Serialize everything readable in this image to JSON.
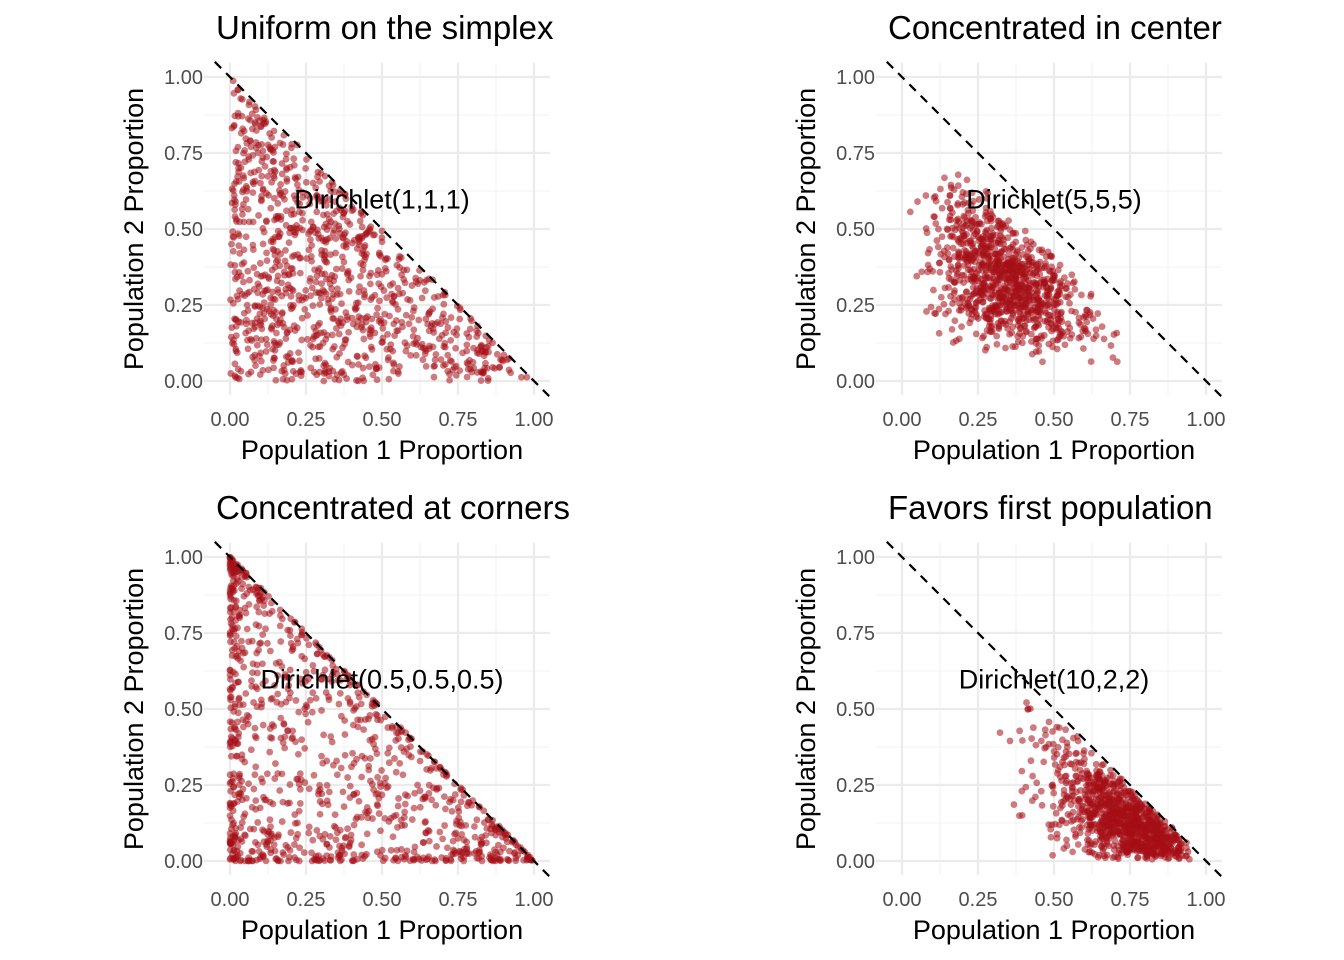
{
  "chart_data": [
    {
      "type": "scatter",
      "title": "Uniform on the simplex",
      "xlabel": "Population 1 Proportion",
      "ylabel": "Population 2 Proportion",
      "xlim": [
        0,
        1
      ],
      "ylim": [
        0,
        1
      ],
      "xticks": [
        "0.00",
        "0.25",
        "0.50",
        "0.75",
        "1.00"
      ],
      "yticks": [
        "0.00",
        "0.25",
        "0.50",
        "0.75",
        "1.00"
      ],
      "annotation": {
        "text": "Dirichlet(1,1,1)",
        "x": 0.5,
        "y": 0.6
      },
      "reference_line": {
        "x1": 0,
        "y1": 1,
        "x2": 1,
        "y2": 0
      },
      "distribution": {
        "family": "dirichlet",
        "alpha": [
          1,
          1,
          1
        ],
        "n": 1000
      },
      "point_color": "#a50f15",
      "point_opacity": 0.55,
      "grid": true,
      "legend": "none"
    },
    {
      "type": "scatter",
      "title": "Concentrated in center",
      "xlabel": "Population 1 Proportion",
      "ylabel": "Population 2 Proportion",
      "xlim": [
        0,
        1
      ],
      "ylim": [
        0,
        1
      ],
      "xticks": [
        "0.00",
        "0.25",
        "0.50",
        "0.75",
        "1.00"
      ],
      "yticks": [
        "0.00",
        "0.25",
        "0.50",
        "0.75",
        "1.00"
      ],
      "annotation": {
        "text": "Dirichlet(5,5,5)",
        "x": 0.5,
        "y": 0.6
      },
      "reference_line": {
        "x1": 0,
        "y1": 1,
        "x2": 1,
        "y2": 0
      },
      "distribution": {
        "family": "dirichlet",
        "alpha": [
          5,
          5,
          5
        ],
        "n": 1000
      },
      "point_color": "#a50f15",
      "point_opacity": 0.55,
      "grid": true,
      "legend": "none"
    },
    {
      "type": "scatter",
      "title": "Concentrated at corners",
      "xlabel": "Population 1 Proportion",
      "ylabel": "Population 2 Proportion",
      "xlim": [
        0,
        1
      ],
      "ylim": [
        0,
        1
      ],
      "xticks": [
        "0.00",
        "0.25",
        "0.50",
        "0.75",
        "1.00"
      ],
      "yticks": [
        "0.00",
        "0.25",
        "0.50",
        "0.75",
        "1.00"
      ],
      "annotation": {
        "text": "Dirichlet(0.5,0.5,0.5)",
        "x": 0.5,
        "y": 0.6
      },
      "reference_line": {
        "x1": 0,
        "y1": 1,
        "x2": 1,
        "y2": 0
      },
      "distribution": {
        "family": "dirichlet",
        "alpha": [
          0.5,
          0.5,
          0.5
        ],
        "n": 1000
      },
      "point_color": "#a50f15",
      "point_opacity": 0.55,
      "grid": true,
      "legend": "none"
    },
    {
      "type": "scatter",
      "title": "Favors first population",
      "xlabel": "Population 1 Proportion",
      "ylabel": "Population 2 Proportion",
      "xlim": [
        0,
        1
      ],
      "ylim": [
        0,
        1
      ],
      "xticks": [
        "0.00",
        "0.25",
        "0.50",
        "0.75",
        "1.00"
      ],
      "yticks": [
        "0.00",
        "0.25",
        "0.50",
        "0.75",
        "1.00"
      ],
      "annotation": {
        "text": "Dirichlet(10,2,2)",
        "x": 0.5,
        "y": 0.6
      },
      "reference_line": {
        "x1": 0,
        "y1": 1,
        "x2": 1,
        "y2": 0
      },
      "distribution": {
        "family": "dirichlet",
        "alpha": [
          10,
          2,
          2
        ],
        "n": 1000
      },
      "point_color": "#a50f15",
      "point_opacity": 0.55,
      "grid": true,
      "legend": "none"
    }
  ]
}
